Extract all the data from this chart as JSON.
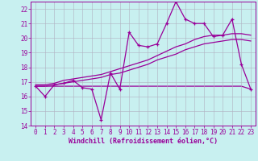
{
  "title": "",
  "xlabel": "Windchill (Refroidissement éolien,°C)",
  "ylabel": "",
  "bg_color": "#c8f0f0",
  "line_color": "#990099",
  "grid_color": "#b0b0c0",
  "xlim": [
    -0.5,
    23.5
  ],
  "ylim": [
    14,
    22.5
  ],
  "yticks": [
    14,
    15,
    16,
    17,
    18,
    19,
    20,
    21,
    22
  ],
  "xticks": [
    0,
    1,
    2,
    3,
    4,
    5,
    6,
    7,
    8,
    9,
    10,
    11,
    12,
    13,
    14,
    15,
    16,
    17,
    18,
    19,
    20,
    21,
    22,
    23
  ],
  "series_zigzag_x": [
    0,
    1,
    2,
    3,
    4,
    5,
    6,
    7,
    8,
    9,
    10,
    11,
    12,
    13,
    14,
    15,
    16,
    17,
    18,
    19,
    20,
    21,
    22,
    23
  ],
  "series_zigzag_y": [
    16.7,
    16.0,
    16.8,
    16.9,
    17.1,
    16.6,
    16.5,
    14.4,
    17.6,
    16.5,
    20.4,
    19.5,
    19.4,
    19.6,
    21.0,
    22.5,
    21.3,
    21.0,
    21.0,
    20.1,
    20.2,
    21.3,
    18.2,
    16.5
  ],
  "series_smooth1_x": [
    0,
    1,
    2,
    3,
    4,
    5,
    6,
    7,
    8,
    9,
    10,
    11,
    12,
    13,
    14,
    15,
    16,
    17,
    18,
    19,
    20,
    21,
    22,
    23
  ],
  "series_smooth1_y": [
    16.8,
    16.8,
    16.9,
    17.1,
    17.2,
    17.3,
    17.4,
    17.5,
    17.7,
    17.9,
    18.1,
    18.3,
    18.5,
    18.8,
    19.1,
    19.4,
    19.6,
    19.9,
    20.1,
    20.2,
    20.2,
    20.3,
    20.3,
    20.2
  ],
  "series_smooth2_x": [
    0,
    1,
    2,
    3,
    4,
    5,
    6,
    7,
    8,
    9,
    10,
    11,
    12,
    13,
    14,
    15,
    16,
    17,
    18,
    19,
    20,
    21,
    22,
    23
  ],
  "series_smooth2_y": [
    16.7,
    16.7,
    16.8,
    16.9,
    17.0,
    17.1,
    17.2,
    17.3,
    17.5,
    17.6,
    17.8,
    18.0,
    18.2,
    18.5,
    18.7,
    18.9,
    19.2,
    19.4,
    19.6,
    19.7,
    19.8,
    19.9,
    19.9,
    19.8
  ],
  "series_flat_x": [
    0,
    9,
    14,
    22,
    23
  ],
  "series_flat_y": [
    16.7,
    16.7,
    16.7,
    16.7,
    16.5
  ],
  "tick_fontsize": 5.5,
  "label_fontsize": 6.0
}
